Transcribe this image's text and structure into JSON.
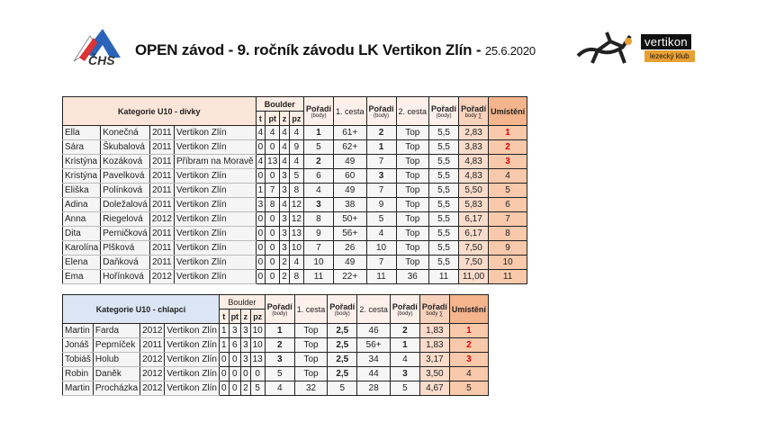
{
  "header": {
    "title": "OPEN závod - 9. ročník závodu LK Vertikon Zlín -",
    "date": "25.6.2020",
    "logo_left": "ČHS",
    "logo_right": "vertikon",
    "logo_right_sub": "lezecký klub"
  },
  "columns": {
    "boulder": "Boulder",
    "t": "t",
    "pt": "pt",
    "z": "z",
    "pz": "pz",
    "poradi": "Pořadí",
    "body": "(body)",
    "cesta1": "1. cesta",
    "cesta2": "2. cesta",
    "body_sum": "body ∑",
    "umisteni": "Umístění"
  },
  "colors": {
    "girls_header": "#fbe5d9",
    "boys_header": "#dce5f4",
    "winner_text": "#e00000",
    "umisteni_header": "#f4b48c"
  },
  "tables": [
    {
      "category": "Kategorie   U10 - dívky",
      "rows": [
        [
          "Ella",
          "Konečná",
          "2011",
          "Vertikon Zlín",
          "4",
          "4",
          "4",
          "4",
          "1",
          "61+",
          "2",
          "Top",
          "5,5",
          "2,83",
          "1"
        ],
        [
          "Sára",
          "Škubalová",
          "2011",
          "Vertikon Zlín",
          "0",
          "0",
          "4",
          "9",
          "5",
          "62+",
          "1",
          "Top",
          "5,5",
          "3,83",
          "2"
        ],
        [
          "Kristýna",
          "Kozáková",
          "2011",
          "Příbram na Moravě",
          "4",
          "13",
          "4",
          "4",
          "2",
          "49",
          "7",
          "Top",
          "5,5",
          "4,83",
          "3"
        ],
        [
          "Kristýna",
          "Pavelková",
          "2011",
          "Vertikon Zlín",
          "0",
          "0",
          "3",
          "5",
          "6",
          "60",
          "3",
          "Top",
          "5,5",
          "4,83",
          "4"
        ],
        [
          "Eliška",
          "Polínková",
          "2011",
          "Vertikon Zlín",
          "1",
          "7",
          "3",
          "8",
          "4",
          "49",
          "7",
          "Top",
          "5,5",
          "5,50",
          "5"
        ],
        [
          "Adina",
          "Doležalová",
          "2011",
          "Vertikon Zlín",
          "3",
          "8",
          "4",
          "12",
          "3",
          "38",
          "9",
          "Top",
          "5,5",
          "5,83",
          "6"
        ],
        [
          "Anna",
          "Riegelová",
          "2012",
          "Vertikon Zlín",
          "0",
          "0",
          "3",
          "12",
          "8",
          "50+",
          "5",
          "Top",
          "5,5",
          "6,17",
          "7"
        ],
        [
          "Dita",
          "Perničková",
          "2011",
          "Vertikon Zlín",
          "0",
          "0",
          "3",
          "13",
          "9",
          "56+",
          "4",
          "Top",
          "5,5",
          "6,17",
          "8"
        ],
        [
          "Karolína",
          "Plšková",
          "2011",
          "Vertikon Zlín",
          "0",
          "0",
          "3",
          "10",
          "7",
          "26",
          "10",
          "Top",
          "5,5",
          "7,50",
          "9"
        ],
        [
          "Elena",
          "Daňková",
          "2011",
          "Vertikon Zlín",
          "0",
          "0",
          "2",
          "4",
          "10",
          "49",
          "7",
          "Top",
          "5,5",
          "7,50",
          "10"
        ],
        [
          "Ema",
          "Hořínková",
          "2012",
          "Vertikon Zlín",
          "0",
          "0",
          "2",
          "8",
          "11",
          "22+",
          "11",
          "36",
          "11",
          "11,00",
          "11"
        ]
      ]
    },
    {
      "category": "Kategorie   U10 - chlapci",
      "rows": [
        [
          "Martin",
          "Farda",
          "2012",
          "Vertikon Zlín",
          "1",
          "3",
          "3",
          "10",
          "1",
          "Top",
          "2,5",
          "46",
          "2",
          "1,83",
          "1"
        ],
        [
          "Jonáš",
          "Pepmíček",
          "2011",
          "Vertikon Zlín",
          "1",
          "6",
          "3",
          "10",
          "2",
          "Top",
          "2,5",
          "56+",
          "1",
          "1,83",
          "2"
        ],
        [
          "Tobiáš",
          "Holub",
          "2012",
          "Vertikon Zlín",
          "0",
          "0",
          "3",
          "13",
          "3",
          "Top",
          "2,5",
          "34",
          "4",
          "3,17",
          "3"
        ],
        [
          "Robin",
          "Daněk",
          "2012",
          "Vertikon Zlín",
          "0",
          "0",
          "0",
          "0",
          "5",
          "Top",
          "2,5",
          "44",
          "3",
          "3,50",
          "4"
        ],
        [
          "Martin",
          "Procházka",
          "2012",
          "Vertikon Zlín",
          "0",
          "0",
          "2",
          "5",
          "4",
          "32",
          "5",
          "28",
          "5",
          "4,67",
          "5"
        ]
      ]
    }
  ]
}
